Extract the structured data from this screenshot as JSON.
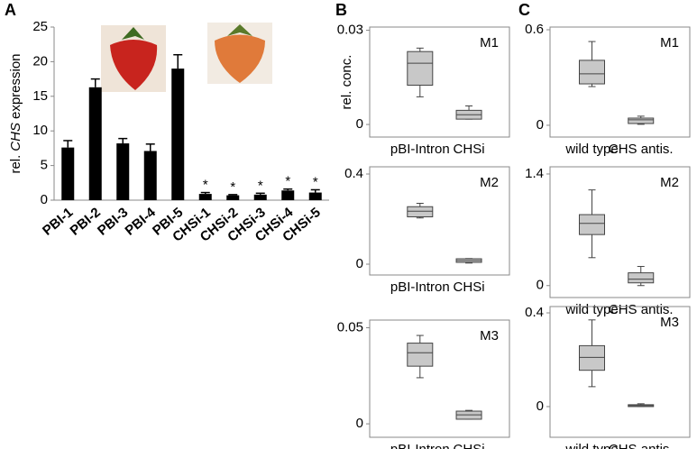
{
  "chart_data": [
    {
      "type": "bar",
      "panel": "A",
      "ylabel": [
        "rel.",
        "CHS",
        "expression"
      ],
      "categories": [
        "PBI-1",
        "PBI-2",
        "PBI-3",
        "PBI-4",
        "PBI-5",
        "CHSi-1",
        "CHSi-2",
        "CHSi-3",
        "CHSi-4",
        "CHSi-5"
      ],
      "values": [
        7.6,
        16.3,
        8.2,
        7.1,
        19.0,
        0.9,
        0.7,
        0.8,
        1.4,
        1.1
      ],
      "errors": [
        1.0,
        1.2,
        0.7,
        1.0,
        2.0,
        0.2,
        0.1,
        0.2,
        0.2,
        0.4
      ],
      "value_annotations": [
        null,
        null,
        null,
        null,
        null,
        "*",
        "*",
        "*",
        "*",
        "*"
      ],
      "color": "#000000",
      "ylim": [
        0,
        25
      ],
      "yticks": [
        0,
        5,
        10,
        15,
        20,
        25
      ]
    },
    {
      "type": "box",
      "panel": "B",
      "label": "M1",
      "ylabel": "rel. conc.",
      "categories": [
        "pBI-Intron",
        "CHSi"
      ],
      "boxes": [
        {
          "min": 0.0088,
          "q1": 0.0125,
          "median": 0.0195,
          "q3": 0.0232,
          "max": 0.0243
        },
        {
          "min": 0.0017,
          "q1": 0.0017,
          "median": 0.0031,
          "q3": 0.0045,
          "max": 0.0059
        }
      ],
      "color": "#c8c8c8",
      "ylim": [
        -0.004,
        0.031
      ],
      "yticks": [
        0,
        0.03
      ]
    },
    {
      "type": "box",
      "label": "M2",
      "categories": [
        "pBI-Intron",
        "CHSi"
      ],
      "boxes": [
        {
          "min": 0.205,
          "q1": 0.21,
          "median": 0.235,
          "q3": 0.255,
          "max": 0.27
        },
        {
          "min": 0.005,
          "q1": 0.008,
          "median": 0.016,
          "q3": 0.024,
          "max": 0.025
        }
      ],
      "color": "#c8c8c8",
      "ylim": [
        -0.048,
        0.432
      ],
      "yticks": [
        0,
        0.4
      ]
    },
    {
      "type": "box",
      "label": "M3",
      "categories": [
        "pBI-Intron",
        "CHSi"
      ],
      "boxes": [
        {
          "min": 0.024,
          "q1": 0.03,
          "median": 0.037,
          "q3": 0.042,
          "max": 0.046
        },
        {
          "min": 0.0024,
          "q1": 0.0024,
          "median": 0.0047,
          "q3": 0.0066,
          "max": 0.007
        }
      ],
      "color": "#c8c8c8",
      "ylim": [
        -0.007,
        0.054
      ],
      "yticks": [
        0,
        0.05
      ]
    },
    {
      "type": "box",
      "panel": "C",
      "label": "M1",
      "categories": [
        "wild type",
        "CHS antis."
      ],
      "boxes": [
        {
          "min": 0.243,
          "q1": 0.26,
          "median": 0.323,
          "q3": 0.408,
          "max": 0.526
        },
        {
          "min": 0.006,
          "q1": 0.011,
          "median": 0.034,
          "q3": 0.045,
          "max": 0.057
        }
      ],
      "color": "#c8c8c8",
      "ylim": [
        -0.074,
        0.617
      ],
      "yticks": [
        0,
        0.6
      ]
    },
    {
      "type": "box",
      "label": "M2",
      "categories": [
        "wild type",
        "CHS antis."
      ],
      "boxes": [
        {
          "min": 0.35,
          "q1": 0.64,
          "median": 0.78,
          "q3": 0.89,
          "max": 1.2
        },
        {
          "min": 0,
          "q1": 0.034,
          "median": 0.08,
          "q3": 0.16,
          "max": 0.24
        }
      ],
      "color": "#c8c8c8",
      "ylim": [
        -0.15,
        1.49
      ],
      "yticks": [
        0,
        1.4
      ]
    },
    {
      "type": "box",
      "label": "M3",
      "categories": [
        "wild type",
        "CHS antis."
      ],
      "boxes": [
        {
          "min": 0.085,
          "q1": 0.155,
          "median": 0.21,
          "q3": 0.26,
          "max": 0.37
        },
        {
          "min": 0,
          "q1": 0,
          "median": 0.004,
          "q3": 0.008,
          "max": 0.012
        }
      ],
      "color": "#c8c8c8",
      "ylim": [
        -0.131,
        0.427
      ],
      "yticks": [
        0,
        0.4
      ]
    }
  ]
}
